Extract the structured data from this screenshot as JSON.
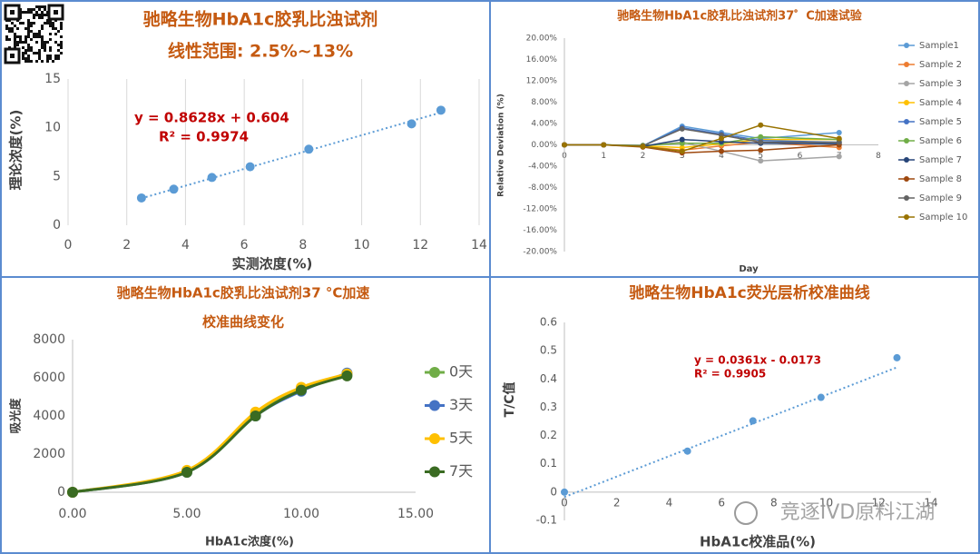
{
  "chart_data": [
    {
      "type": "scatter",
      "title": "驰略生物HbA1c胶乳比浊试剂",
      "subtitle": "线性范围: 2.5%~13%",
      "x_label": "实测浓度(%)",
      "y_label": "理论浓度(%)",
      "x": [
        2.5,
        3.6,
        4.9,
        6.2,
        8.2,
        11.7,
        12.7
      ],
      "values": [
        2.8,
        3.7,
        4.9,
        6.0,
        7.8,
        10.4,
        11.8
      ],
      "color": "#5b9bd5",
      "trendline": {
        "slope": 0.8628,
        "intercept": 0.604
      },
      "annotations": [
        "y = 0.8628x + 0.604",
        "R² = 0.9974"
      ],
      "xlim": [
        0,
        14
      ],
      "xticks": [
        0,
        2,
        4,
        6,
        8,
        10,
        12,
        14
      ],
      "ylim": [
        0,
        15
      ],
      "yticks": [
        0,
        5,
        10,
        15
      ],
      "grid": "x"
    },
    {
      "type": "line",
      "title": "驰略生物HbA1c胶乳比浊试剂37゜C加速试验",
      "x_label": "Day",
      "y_label": "Relative Deviation (%)",
      "x": [
        0,
        1,
        2,
        3,
        4,
        5,
        7
      ],
      "series": [
        {
          "name": "Sample1",
          "color": "#5b9bd5",
          "values": [
            0,
            0,
            -0.2,
            3.5,
            2.3,
            1.2,
            2.3
          ]
        },
        {
          "name": "Sample 2",
          "color": "#ed7d31",
          "values": [
            0,
            0,
            -0.3,
            -1.0,
            -0.2,
            0.5,
            -0.5
          ]
        },
        {
          "name": "Sample 3",
          "color": "#a5a5a5",
          "values": [
            0,
            0,
            -0.2,
            0.5,
            -1.2,
            -3.0,
            -2.2
          ]
        },
        {
          "name": "Sample 4",
          "color": "#ffc000",
          "values": [
            0,
            0,
            -0.2,
            -0.5,
            0.2,
            1.0,
            1.0
          ]
        },
        {
          "name": "Sample 5",
          "color": "#4472c4",
          "values": [
            0,
            0,
            -0.2,
            3.2,
            2.0,
            0.8,
            0.5
          ]
        },
        {
          "name": "Sample 6",
          "color": "#70ad47",
          "values": [
            0,
            0,
            -0.1,
            0.3,
            0.3,
            1.5,
            1.0
          ]
        },
        {
          "name": "Sample 7",
          "color": "#264478",
          "values": [
            0,
            0,
            -0.3,
            1.0,
            0.6,
            0.3,
            0.2
          ]
        },
        {
          "name": "Sample 8",
          "color": "#9e480e",
          "values": [
            0,
            0,
            -0.4,
            -1.5,
            -1.2,
            -1.0,
            0
          ]
        },
        {
          "name": "Sample 9",
          "color": "#636363",
          "values": [
            0,
            0,
            -0.2,
            3.0,
            1.8,
            0.5,
            0.5
          ]
        },
        {
          "name": "Sample 10",
          "color": "#997300",
          "values": [
            0,
            0,
            -0.3,
            -1.2,
            1.2,
            3.7,
            1.2
          ]
        }
      ],
      "xlim": [
        0,
        8
      ],
      "xticks": [
        0,
        1,
        2,
        3,
        4,
        5,
        6,
        7,
        8
      ],
      "ylim": [
        -20,
        20
      ],
      "yticks": [
        {
          "value": 20,
          "label": "20.00%"
        },
        {
          "value": 16,
          "label": "16.00%"
        },
        {
          "value": 12,
          "label": "12.00%"
        },
        {
          "value": 8,
          "label": "8.00%"
        },
        {
          "value": 4,
          "label": "4.00%"
        },
        {
          "value": 0,
          "label": "0.00%"
        },
        {
          "value": -4,
          "label": "-4.00%"
        },
        {
          "value": -8,
          "label": "-8.00%"
        },
        {
          "value": -12,
          "label": "-12.00%"
        },
        {
          "value": -16,
          "label": "-16.00%"
        },
        {
          "value": -20,
          "label": "-20.00%"
        }
      ],
      "grid": false,
      "legend": "right"
    },
    {
      "type": "line",
      "title": "驰略生物HbA1c胶乳比浊试剂37 °C加速",
      "subtitle": "校准曲线变化",
      "x_label": "HbA1c浓度(%)",
      "y_label": "吸光度",
      "x": [
        0,
        5,
        8,
        10,
        12
      ],
      "smooth": true,
      "series": [
        {
          "name": "0天",
          "color": "#70ad47",
          "values": [
            0,
            1100,
            4100,
            5400,
            6200
          ]
        },
        {
          "name": "3天",
          "color": "#4472c4",
          "values": [
            0,
            1050,
            4000,
            5300,
            6250
          ]
        },
        {
          "name": "5天",
          "color": "#ffc000",
          "values": [
            0,
            1150,
            4200,
            5500,
            6200
          ]
        },
        {
          "name": "7天",
          "color": "#3a6b22",
          "values": [
            0,
            1050,
            4000,
            5350,
            6100
          ]
        }
      ],
      "xlim": [
        0,
        15
      ],
      "xticks": [
        {
          "value": 0,
          "label": "0.00"
        },
        {
          "value": 5,
          "label": "5.00"
        },
        {
          "value": 10,
          "label": "10.00"
        },
        {
          "value": 15,
          "label": "15.00"
        }
      ],
      "ylim": [
        0,
        8000
      ],
      "yticks": [
        0,
        2000,
        4000,
        6000,
        8000
      ],
      "grid": false,
      "legend": "right"
    },
    {
      "type": "scatter",
      "title": "驰略生物HbA1c荧光层析校准曲线",
      "x_label": "HbA1c校准品(%)",
      "y_label": "T/C值",
      "x": [
        0,
        4.7,
        7.2,
        9.8,
        12.7
      ],
      "values": [
        0,
        0.145,
        0.252,
        0.335,
        0.475
      ],
      "color": "#5b9bd5",
      "trendline": {
        "slope": 0.0361,
        "intercept": -0.0173
      },
      "annotations": [
        "y = 0.0361x - 0.0173",
        "R² = 0.9905"
      ],
      "xlim": [
        0,
        14
      ],
      "xticks": [
        0,
        2,
        4,
        6,
        8,
        10,
        12,
        14
      ],
      "ylim": [
        -0.1,
        0.6
      ],
      "yticks": [
        -0.1,
        0,
        0.1,
        0.2,
        0.3,
        0.4,
        0.5,
        0.6
      ],
      "grid": false
    }
  ],
  "watermark": "竞逐IVD原料江湖"
}
